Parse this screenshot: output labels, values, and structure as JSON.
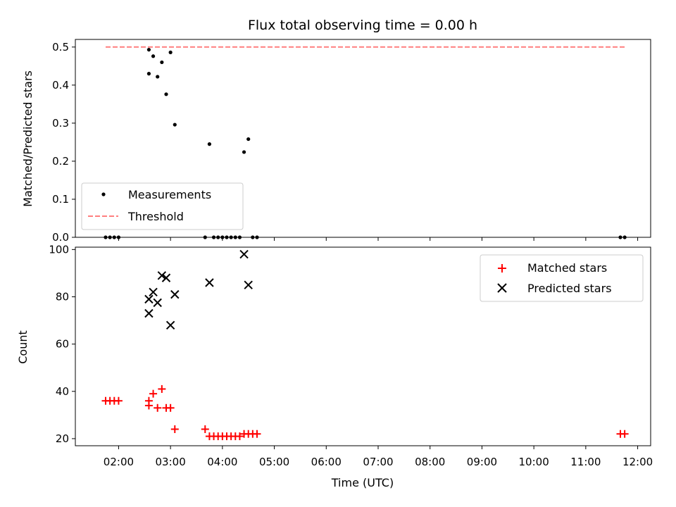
{
  "chart_data": [
    {
      "type": "scatter",
      "title": "Flux total observing time = 0.00 h",
      "ylabel": "Matched/Predicted stars",
      "xlabel": "",
      "ylim": [
        0,
        0.52
      ],
      "yticks": [
        0.0,
        0.1,
        0.2,
        0.3,
        0.4,
        0.5
      ],
      "ytick_labels": [
        "0.0",
        "0.1",
        "0.2",
        "0.3",
        "0.4",
        "0.5"
      ],
      "legend": {
        "position": "lower-left",
        "entries": [
          "Measurements",
          "Threshold"
        ]
      },
      "series": [
        {
          "name": "Measurements",
          "marker": "dot",
          "color": "#000000",
          "points": [
            [
              "01:45",
              0.0
            ],
            [
              "01:50",
              0.0
            ],
            [
              "01:55",
              0.0
            ],
            [
              "02:00",
              0.0
            ],
            [
              "02:35",
              0.43
            ],
            [
              "02:35",
              0.493
            ],
            [
              "02:40",
              0.476
            ],
            [
              "02:45",
              0.422
            ],
            [
              "02:50",
              0.46
            ],
            [
              "02:55",
              0.376
            ],
            [
              "03:00",
              0.486
            ],
            [
              "03:05",
              0.296
            ],
            [
              "03:40",
              0.0
            ],
            [
              "03:45",
              0.245
            ],
            [
              "03:50",
              0.0
            ],
            [
              "03:55",
              0.0
            ],
            [
              "04:00",
              0.0
            ],
            [
              "04:05",
              0.0
            ],
            [
              "04:10",
              0.0
            ],
            [
              "04:15",
              0.0
            ],
            [
              "04:20",
              0.0
            ],
            [
              "04:25",
              0.224
            ],
            [
              "04:30",
              0.258
            ],
            [
              "04:35",
              0.0
            ],
            [
              "04:40",
              0.0
            ],
            [
              "11:40",
              0.0
            ],
            [
              "11:45",
              0.0
            ]
          ]
        },
        {
          "name": "Threshold",
          "marker": "dashed-line",
          "color": "#ff7f7f",
          "points": [
            [
              "01:45",
              0.5
            ],
            [
              "11:45",
              0.5
            ]
          ]
        }
      ]
    },
    {
      "type": "scatter",
      "title": "",
      "ylabel": "Count",
      "xlabel": "Time (UTC)",
      "ylim": [
        17,
        101
      ],
      "yticks": [
        20,
        40,
        60,
        80,
        100
      ],
      "ytick_labels": [
        "20",
        "40",
        "60",
        "80",
        "100"
      ],
      "xlim": [
        "01:10",
        "12:15"
      ],
      "xticks": [
        "02:00",
        "03:00",
        "04:00",
        "05:00",
        "06:00",
        "07:00",
        "08:00",
        "09:00",
        "10:00",
        "11:00",
        "12:00"
      ],
      "legend": {
        "position": "upper-right",
        "entries": [
          "Matched stars",
          "Predicted stars"
        ]
      },
      "series": [
        {
          "name": "Matched stars",
          "marker": "plus",
          "color": "#ff0000",
          "points": [
            [
              "01:45",
              36
            ],
            [
              "01:50",
              36
            ],
            [
              "01:55",
              36
            ],
            [
              "02:00",
              36
            ],
            [
              "02:35",
              36
            ],
            [
              "02:35",
              34
            ],
            [
              "02:40",
              39
            ],
            [
              "02:45",
              33
            ],
            [
              "02:50",
              41
            ],
            [
              "02:55",
              33
            ],
            [
              "03:00",
              33
            ],
            [
              "03:05",
              24
            ],
            [
              "03:40",
              24
            ],
            [
              "03:45",
              21
            ],
            [
              "03:50",
              21
            ],
            [
              "03:55",
              21
            ],
            [
              "04:00",
              21
            ],
            [
              "04:05",
              21
            ],
            [
              "04:10",
              21
            ],
            [
              "04:15",
              21
            ],
            [
              "04:20",
              21
            ],
            [
              "04:25",
              22
            ],
            [
              "04:30",
              22
            ],
            [
              "04:35",
              22
            ],
            [
              "04:40",
              22
            ],
            [
              "11:40",
              22
            ],
            [
              "11:45",
              22
            ]
          ]
        },
        {
          "name": "Predicted stars",
          "marker": "x",
          "color": "#000000",
          "points": [
            [
              "02:35",
              73
            ],
            [
              "02:35",
              79
            ],
            [
              "02:40",
              82
            ],
            [
              "02:45",
              77.5
            ],
            [
              "02:50",
              89
            ],
            [
              "02:55",
              88
            ],
            [
              "03:00",
              68
            ],
            [
              "03:05",
              81
            ],
            [
              "03:45",
              86
            ],
            [
              "04:25",
              98
            ],
            [
              "04:30",
              85
            ]
          ]
        }
      ]
    }
  ]
}
